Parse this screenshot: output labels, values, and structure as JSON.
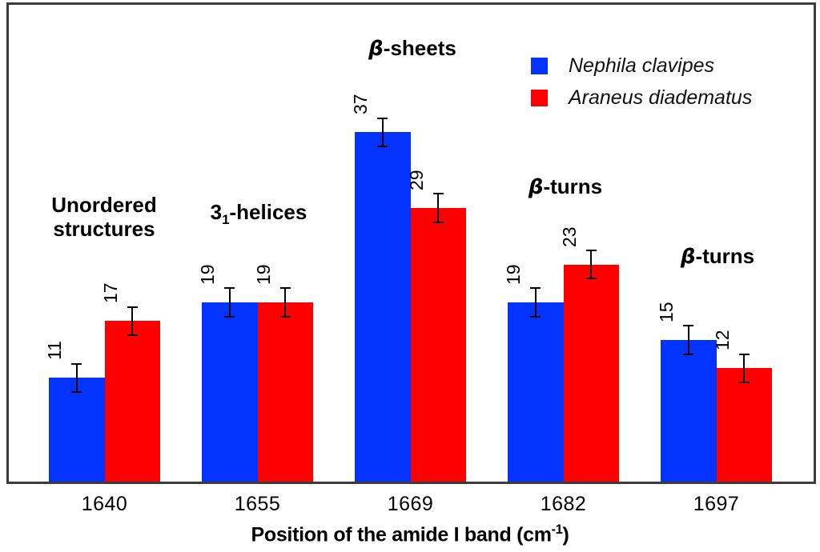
{
  "figure": {
    "background": "#ffffff",
    "frame_color": "#3c3c3c"
  },
  "legend": {
    "position": "top-right",
    "items": [
      {
        "swatch": "blue-square",
        "color": "#0433ff",
        "label": "Nephila clavipes"
      },
      {
        "swatch": "red-square",
        "color": "#ff0000",
        "label": "Araneus diadematus"
      }
    ]
  },
  "annotations": [
    {
      "line1": "Unordered",
      "line2": "structures"
    },
    {
      "base": "3",
      "sub": "1",
      "rest": "-helices"
    },
    {
      "beta": "β",
      "rest": "-sheets"
    },
    {
      "beta": "β",
      "rest": "-turns"
    },
    {
      "beta": "β",
      "rest": "-turns"
    }
  ],
  "axis": {
    "title": {
      "main": "Position of the amide I band (cm",
      "sup": "-1",
      "close": ")"
    }
  },
  "chart_data": {
    "type": "bar",
    "title": "",
    "xlabel": "Position of the amide I band (cm-1)",
    "ylabel": "",
    "categories": [
      "1640",
      "1655",
      "1669",
      "1682",
      "1697"
    ],
    "series": [
      {
        "name": "Nephila clavipes",
        "color": "#0433ff",
        "values": [
          11,
          19,
          37,
          19,
          15
        ],
        "errors": [
          1.5,
          1.5,
          1.5,
          1.5,
          1.5
        ]
      },
      {
        "name": "Araneus diadematus",
        "color": "#ff0000",
        "values": [
          17,
          19,
          29,
          23,
          12
        ],
        "errors": [
          1.5,
          1.5,
          1.5,
          1.5,
          1.5
        ]
      }
    ],
    "value_labels": true,
    "value_label_rotation_deg": 90,
    "error_bars": true,
    "group_annotations": [
      "Unordered structures",
      "3(1)-helices",
      "β-sheets",
      "β-turns",
      "β-turns"
    ],
    "y_axis_visible": false,
    "grid": false,
    "legend_position": "top-right"
  }
}
